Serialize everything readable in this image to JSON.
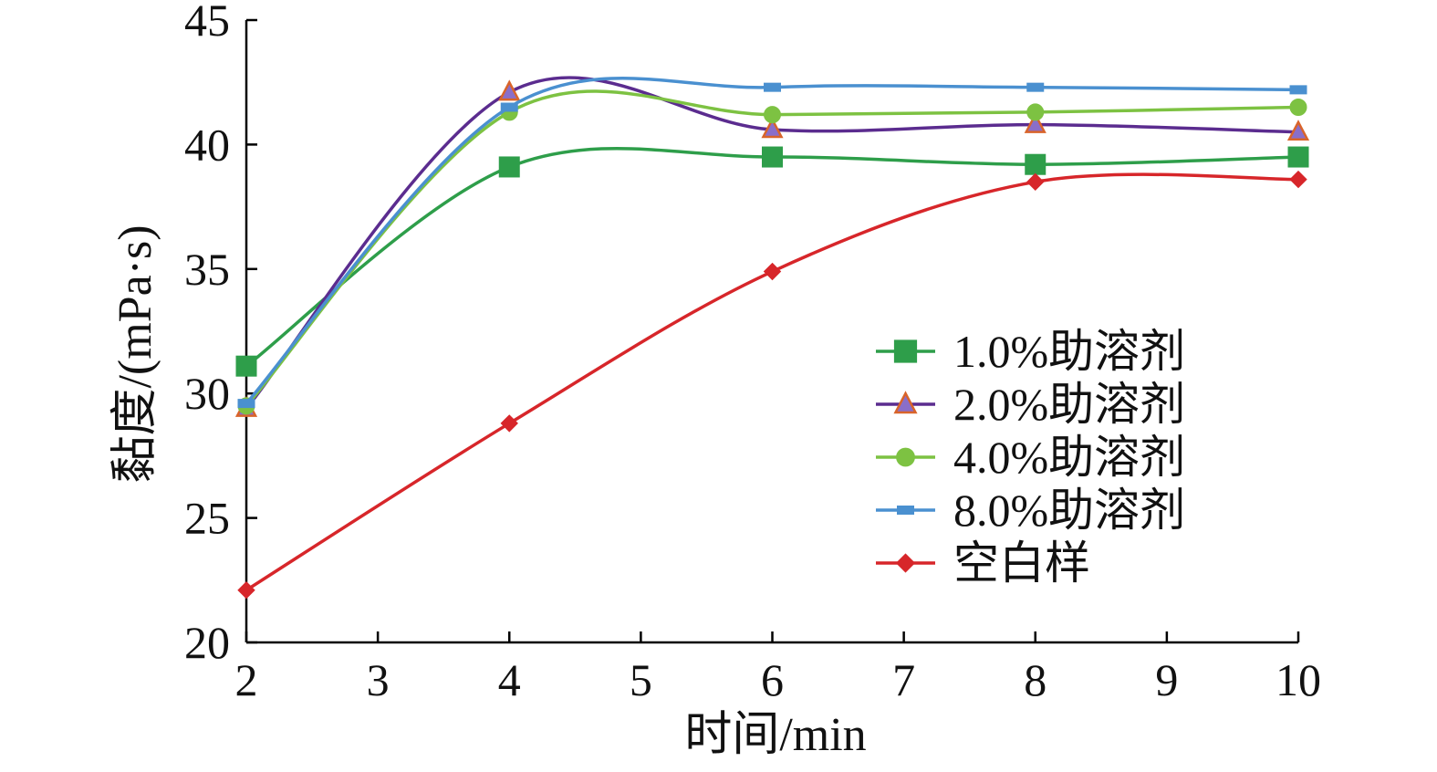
{
  "chart_data": {
    "type": "line",
    "title": "",
    "xlabel": "时间/min",
    "ylabel": "黏度/(mPa·s)",
    "xlim": [
      2,
      10
    ],
    "ylim": [
      20,
      45
    ],
    "xticks": [
      2,
      3,
      4,
      5,
      6,
      7,
      8,
      9,
      10
    ],
    "yticks": [
      20,
      25,
      30,
      35,
      40,
      45
    ],
    "x": [
      2,
      4,
      6,
      8,
      10
    ],
    "smooth": true,
    "grid": false,
    "legend_position": "right-middle",
    "series": [
      {
        "name": "1.0%助溶剂",
        "values": [
          31.1,
          39.1,
          39.5,
          39.2,
          39.5
        ],
        "color": "#2e9e4a",
        "marker": "square",
        "marker_fill": "#2e9e4a",
        "marker_stroke": "#2e9e4a"
      },
      {
        "name": "2.0%助溶剂",
        "values": [
          29.4,
          42.1,
          40.6,
          40.8,
          40.5
        ],
        "color": "#5b2c8f",
        "marker": "triangle",
        "marker_fill": "#8a6ec9",
        "marker_stroke": "#d9642a"
      },
      {
        "name": "4.0%助溶剂",
        "values": [
          29.5,
          41.3,
          41.2,
          41.3,
          41.5
        ],
        "color": "#7dc242",
        "marker": "circle",
        "marker_fill": "#7dc242",
        "marker_stroke": "#7dc242"
      },
      {
        "name": "8.0%助溶剂",
        "values": [
          29.6,
          41.5,
          42.3,
          42.3,
          42.2
        ],
        "color": "#4a90d0",
        "marker": "dash",
        "marker_fill": "#4a90d0",
        "marker_stroke": "#4a90d0"
      },
      {
        "name": "空白样",
        "values": [
          22.1,
          28.8,
          34.9,
          38.5,
          38.6
        ],
        "color": "#d7262a",
        "marker": "diamond",
        "marker_fill": "#d7262a",
        "marker_stroke": "#d7262a"
      }
    ]
  }
}
